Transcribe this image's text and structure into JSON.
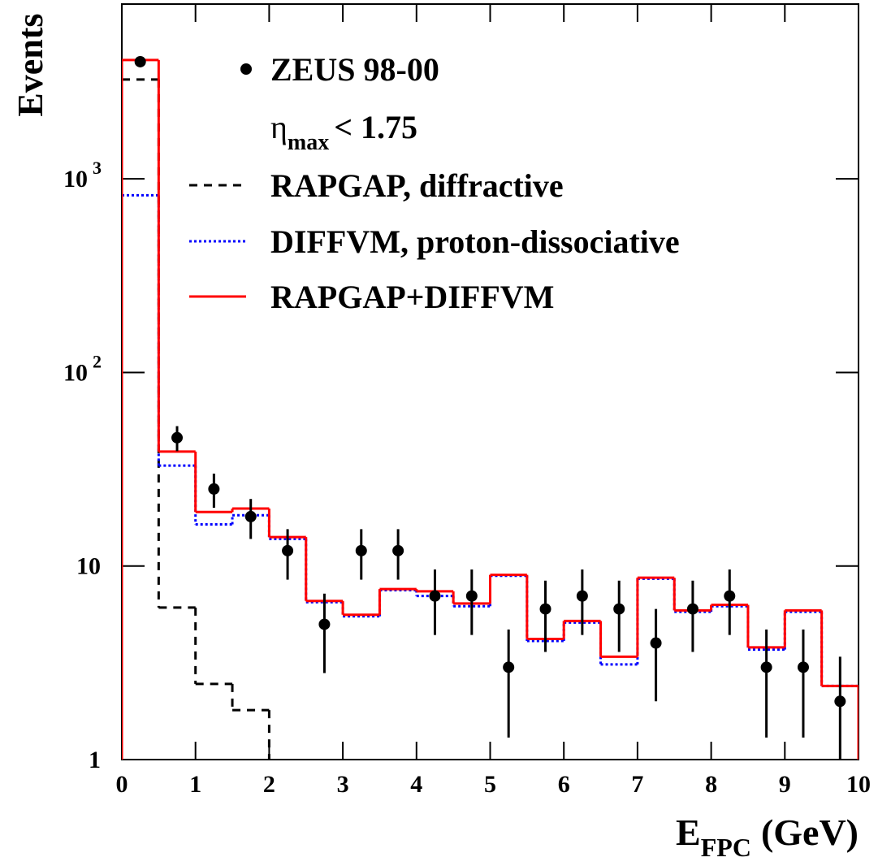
{
  "chart_data": {
    "type": "histogram",
    "y_label": "Events",
    "x_label": "E",
    "x_label_sub": "FPC",
    "x_label_unit": "(GeV)",
    "log_y": true,
    "xlim": [
      0,
      10
    ],
    "ylim": [
      1,
      8000
    ],
    "xticks": [
      0,
      1,
      2,
      3,
      4,
      5,
      6,
      7,
      8,
      9,
      10
    ],
    "yticks": [
      1,
      10,
      {
        "value": 100,
        "label": "10",
        "exponent": "2"
      },
      {
        "value": 1000,
        "label": "10",
        "exponent": "3"
      }
    ],
    "bins": [
      0,
      0.5,
      1,
      1.5,
      2,
      2.5,
      3,
      3.5,
      4,
      4.5,
      5,
      5.5,
      6,
      6.5,
      7,
      7.5,
      8,
      8.5,
      9,
      9.5,
      10
    ],
    "annotation": {
      "symbol": "η",
      "subscript": "max",
      "text": "< 1.75"
    },
    "points": {
      "name": "ZEUS 98-00",
      "color": "#000000",
      "x": [
        0.25,
        0.75,
        1.25,
        1.75,
        2.25,
        2.75,
        3.25,
        3.75,
        4.25,
        4.75,
        5.25,
        5.75,
        6.25,
        6.75,
        7.25,
        7.75,
        8.25,
        8.75,
        9.25,
        9.75
      ],
      "values": [
        4030,
        46,
        25,
        18,
        12,
        5,
        12,
        12,
        7,
        7,
        3,
        6,
        7,
        6,
        4,
        6,
        7,
        3,
        3,
        2
      ],
      "errors": [
        63,
        6.8,
        5,
        4.2,
        3.5,
        2.2,
        3.5,
        3.5,
        2.6,
        2.6,
        1.7,
        2.4,
        2.6,
        2.4,
        2,
        2.4,
        2.6,
        1.7,
        1.7,
        1.4
      ]
    },
    "series": [
      {
        "name": "RAPGAP, diffractive",
        "color": "#000000",
        "style": "dashed",
        "values": [
          3260,
          6.1,
          2.46,
          1.8,
          null,
          null,
          null,
          null,
          null,
          null,
          null,
          null,
          null,
          null,
          null,
          null,
          null,
          null,
          null,
          null
        ]
      },
      {
        "name": "DIFFVM, proton-dissociative",
        "color": "#0000ff",
        "style": "dotted",
        "values": [
          823,
          33,
          16.4,
          18.3,
          13.8,
          6.5,
          5.5,
          7.5,
          7.0,
          6.2,
          8.9,
          4.1,
          5.1,
          3.1,
          8.6,
          5.8,
          6.2,
          3.7,
          5.8,
          2.4
        ]
      },
      {
        "name": "RAPGAP+DIFFVM",
        "color": "#ff0000",
        "style": "solid",
        "values": [
          4110,
          39,
          19,
          19.8,
          14.1,
          6.6,
          5.6,
          7.6,
          7.4,
          6.4,
          9.0,
          4.2,
          5.2,
          3.4,
          8.7,
          5.9,
          6.3,
          3.8,
          5.9,
          2.4
        ]
      }
    ]
  }
}
